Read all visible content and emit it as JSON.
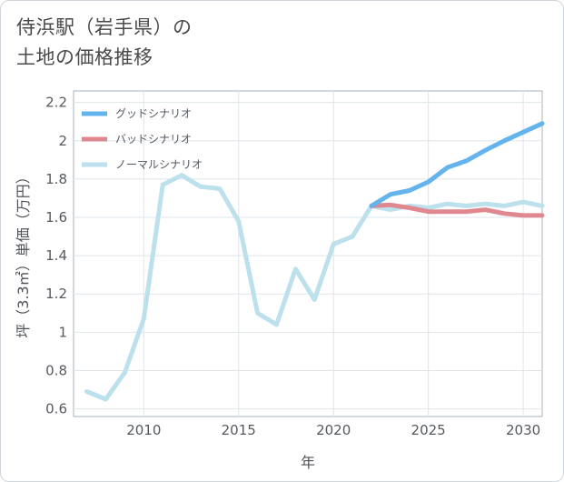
{
  "title_line1": "侍浜駅（岩手県）の",
  "title_line2": "土地の価格推移",
  "chart_data": {
    "type": "line",
    "xlabel": "年",
    "ylabel": "坪（3.3㎡）単価（万円）",
    "xlim": [
      2006.3,
      2031
    ],
    "ylim": [
      0.56,
      2.26
    ],
    "xticks": [
      2010,
      2015,
      2020,
      2025,
      2030
    ],
    "xtick_labels": [
      "2010",
      "2015",
      "2020",
      "2025",
      "2030"
    ],
    "yticks": [
      0.6,
      0.8,
      1,
      1.2,
      1.4,
      1.6,
      1.8,
      2,
      2.2
    ],
    "ytick_labels": [
      "0.6",
      "0.8",
      "1",
      "1.2",
      "1.4",
      "1.6",
      "1.8",
      "2",
      "2.2"
    ],
    "grid": true,
    "legend_position": "top-left",
    "series": [
      {
        "name": "グッドシナリオ",
        "color": "#63b3ed",
        "x": [
          2022,
          2023,
          2024,
          2025,
          2026,
          2027,
          2028,
          2029,
          2030,
          2031
        ],
        "y": [
          1.66,
          1.72,
          1.74,
          1.785,
          1.86,
          1.895,
          1.95,
          2.0,
          2.045,
          2.09
        ]
      },
      {
        "name": "バッドシナリオ",
        "color": "#e08890",
        "x": [
          2022,
          2023,
          2024,
          2025,
          2026,
          2027,
          2028,
          2029,
          2030,
          2031
        ],
        "y": [
          1.66,
          1.665,
          1.65,
          1.63,
          1.63,
          1.63,
          1.64,
          1.62,
          1.61,
          1.61
        ]
      },
      {
        "name": "ノーマルシナリオ",
        "color": "#bde0ed",
        "x": [
          2007,
          2008,
          2009,
          2010,
          2011,
          2012,
          2013,
          2014,
          2015,
          2016,
          2017,
          2018,
          2019,
          2020,
          2021,
          2022,
          2023,
          2024,
          2025,
          2026,
          2027,
          2028,
          2029,
          2030,
          2031
        ],
        "y": [
          0.69,
          0.65,
          0.79,
          1.07,
          1.77,
          1.82,
          1.76,
          1.75,
          1.58,
          1.1,
          1.04,
          1.33,
          1.17,
          1.46,
          1.5,
          1.66,
          1.64,
          1.66,
          1.65,
          1.67,
          1.66,
          1.67,
          1.66,
          1.68,
          1.66
        ]
      }
    ]
  }
}
